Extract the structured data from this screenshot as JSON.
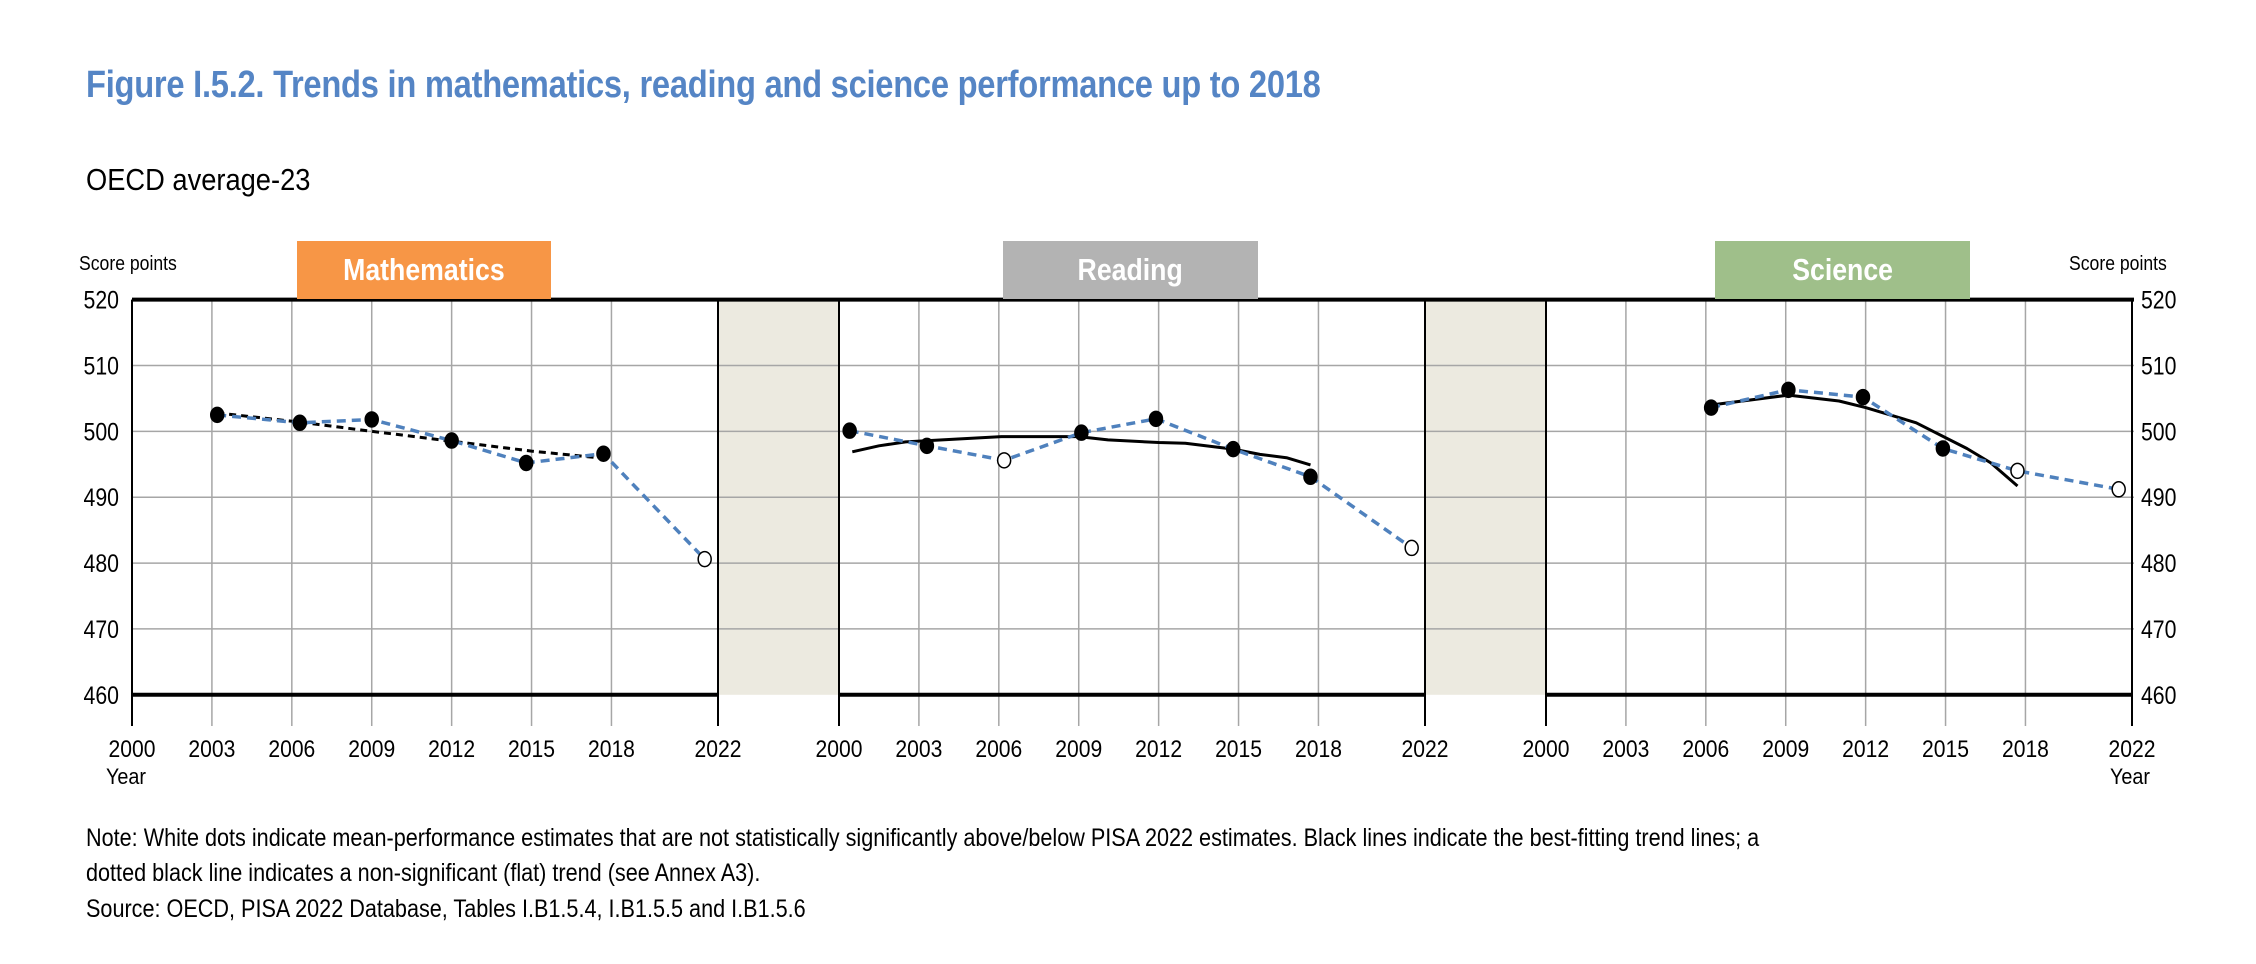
{
  "title": "Figure I.5.2. Trends in mathematics, reading and science performance up to 2018",
  "subtitle": "OECD average-23",
  "y_axis_label": "Score points",
  "x_axis_label": "Year",
  "notes": [
    "Note: White dots indicate mean-performance estimates that are not statistically significantly above/below PISA 2022 estimates. Black lines indicate the best-fitting trend lines; a",
    "dotted black line indicates a non-significant (flat) trend (see Annex A3).",
    "Source: OECD, PISA 2022 Database, Tables I.B1.5.4, I.B1.5.5 and I.B1.5.6"
  ],
  "colors": {
    "title": "#5585C5",
    "series_line": "#4F81BD",
    "trend": "#000000",
    "gridline": "#A6A6A6",
    "gap_band": "#ECEAE0"
  },
  "chart_data": [
    {
      "type": "line",
      "title": "Mathematics",
      "tag_color": "#F79646",
      "xlim": [
        2000,
        2022
      ],
      "x_ticks": [
        "2000",
        "2003",
        "2006",
        "2009",
        "2012",
        "2015",
        "2018",
        "2022"
      ],
      "ylim": [
        460,
        520
      ],
      "y_ticks": [
        460,
        470,
        480,
        490,
        500,
        510,
        520
      ],
      "grid": true,
      "series": [
        {
          "style": "blue-dashed",
          "points": [
            {
              "x": 2003.2,
              "y": 502.5,
              "significant": true
            },
            {
              "x": 2006.3,
              "y": 501.3,
              "significant": true
            },
            {
              "x": 2009.0,
              "y": 501.8,
              "significant": true
            },
            {
              "x": 2012.0,
              "y": 498.6,
              "significant": true
            },
            {
              "x": 2014.8,
              "y": 495.2,
              "significant": true
            },
            {
              "x": 2017.7,
              "y": 496.6,
              "significant": true
            },
            {
              "x": 2021.5,
              "y": 480.6,
              "significant": false
            }
          ]
        }
      ],
      "trend": {
        "style": "dotted",
        "points": [
          {
            "x": 2003.2,
            "y": 502.8
          },
          {
            "x": 2006.3,
            "y": 501.4
          },
          {
            "x": 2009.0,
            "y": 500.0
          },
          {
            "x": 2012.0,
            "y": 498.5
          },
          {
            "x": 2015.0,
            "y": 497.0
          },
          {
            "x": 2017.7,
            "y": 495.9
          }
        ]
      }
    },
    {
      "type": "line",
      "title": "Reading",
      "tag_color": "#B3B3B3",
      "xlim": [
        2000,
        2022
      ],
      "x_ticks": [
        "2000",
        "2003",
        "2006",
        "2009",
        "2012",
        "2015",
        "2018",
        "2022"
      ],
      "ylim": [
        460,
        520
      ],
      "y_ticks": [
        460,
        470,
        480,
        490,
        500,
        510,
        520
      ],
      "grid": true,
      "series": [
        {
          "style": "blue-dashed",
          "points": [
            {
              "x": 2000.4,
              "y": 500.1,
              "significant": true
            },
            {
              "x": 2003.3,
              "y": 497.8,
              "significant": true
            },
            {
              "x": 2006.2,
              "y": 495.6,
              "significant": false
            },
            {
              "x": 2009.1,
              "y": 499.8,
              "significant": true
            },
            {
              "x": 2011.9,
              "y": 501.9,
              "significant": true
            },
            {
              "x": 2014.8,
              "y": 497.3,
              "significant": true
            },
            {
              "x": 2017.7,
              "y": 493.1,
              "significant": true
            },
            {
              "x": 2021.5,
              "y": 482.3,
              "significant": false
            }
          ]
        }
      ],
      "trend": {
        "style": "solid",
        "points": [
          {
            "x": 2000.5,
            "y": 496.9
          },
          {
            "x": 2001.5,
            "y": 497.8
          },
          {
            "x": 2002.5,
            "y": 498.4
          },
          {
            "x": 2004.3,
            "y": 498.8
          },
          {
            "x": 2006.1,
            "y": 499.2
          },
          {
            "x": 2009.0,
            "y": 499.2
          },
          {
            "x": 2010.1,
            "y": 498.7
          },
          {
            "x": 2012.0,
            "y": 498.3
          },
          {
            "x": 2013.0,
            "y": 498.2
          },
          {
            "x": 2014.8,
            "y": 497.3
          },
          {
            "x": 2015.8,
            "y": 496.5
          },
          {
            "x": 2016.8,
            "y": 496.0
          },
          {
            "x": 2017.7,
            "y": 494.9
          }
        ]
      }
    },
    {
      "type": "line",
      "title": "Science",
      "tag_color": "#9FBF8A",
      "xlim": [
        2000,
        2022
      ],
      "x_ticks": [
        "2000",
        "2003",
        "2006",
        "2009",
        "2012",
        "2015",
        "2018",
        "2022"
      ],
      "ylim": [
        460,
        520
      ],
      "y_ticks": [
        460,
        470,
        480,
        490,
        500,
        510,
        520
      ],
      "grid": true,
      "series": [
        {
          "style": "blue-dashed",
          "points": [
            {
              "x": 2006.2,
              "y": 503.6,
              "significant": true
            },
            {
              "x": 2009.1,
              "y": 506.3,
              "significant": true
            },
            {
              "x": 2011.9,
              "y": 505.2,
              "significant": true
            },
            {
              "x": 2014.9,
              "y": 497.4,
              "significant": true
            },
            {
              "x": 2017.7,
              "y": 494.0,
              "significant": false
            },
            {
              "x": 2021.5,
              "y": 491.2,
              "significant": false
            }
          ]
        }
      ],
      "trend": {
        "style": "solid",
        "points": [
          {
            "x": 2006.2,
            "y": 504.0
          },
          {
            "x": 2009.1,
            "y": 505.5
          },
          {
            "x": 2011.0,
            "y": 504.6
          },
          {
            "x": 2012.0,
            "y": 503.6
          },
          {
            "x": 2013.9,
            "y": 501.3
          },
          {
            "x": 2015.8,
            "y": 497.4
          },
          {
            "x": 2016.7,
            "y": 495.2
          },
          {
            "x": 2017.7,
            "y": 491.7
          }
        ]
      }
    }
  ]
}
